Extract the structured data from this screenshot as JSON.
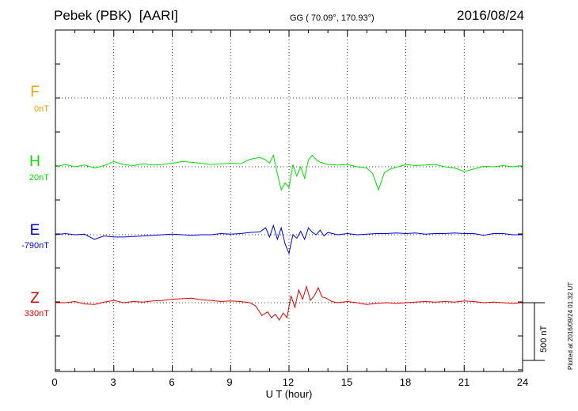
{
  "header": {
    "station": "Pebek (PBK)  [AARI]",
    "coords": "GG ( 70.09°, 170.93°)",
    "date": "2016/08/24"
  },
  "footer_note": "Plotted at 2016/09/24 01:32 UT",
  "scale_bar": {
    "label": "500 nT",
    "value_nT": 500
  },
  "components": [
    {
      "key": "F",
      "baseline": "0nT",
      "color": "#f0a000"
    },
    {
      "key": "H",
      "baseline": "20nT",
      "color": "#00e000"
    },
    {
      "key": "E",
      "baseline": "-790nT",
      "color": "#0000e0"
    },
    {
      "key": "Z",
      "baseline": "330nT",
      "color": "#e00000"
    }
  ],
  "chart_data": {
    "type": "line",
    "xlabel": "U T (hour)",
    "xlim": [
      0,
      24
    ],
    "xticks": [
      "0",
      "3",
      "6",
      "9",
      "12",
      "15",
      "18",
      "21",
      "24"
    ],
    "ylabel": "",
    "grid": true,
    "units": "nT",
    "series": [
      {
        "name": "F",
        "color": "#f0a000",
        "x": [],
        "values": []
      },
      {
        "name": "H",
        "color": "#00e000",
        "x": [
          0,
          0.5,
          1.0,
          1.5,
          2.0,
          2.5,
          3.0,
          3.5,
          4.0,
          4.5,
          5.0,
          5.5,
          6.0,
          6.5,
          7.0,
          7.5,
          8.0,
          8.5,
          9.0,
          9.5,
          10.0,
          10.5,
          10.8,
          11.0,
          11.2,
          11.4,
          11.6,
          11.8,
          12.0,
          12.2,
          12.4,
          12.6,
          12.8,
          13.0,
          13.2,
          13.4,
          13.6,
          13.8,
          14.0,
          14.5,
          15.0,
          15.5,
          16.0,
          16.3,
          16.6,
          16.9,
          17.2,
          17.6,
          18.0,
          18.5,
          19.0,
          19.5,
          20.0,
          20.5,
          21.0,
          21.5,
          22.0,
          22.5,
          23.0,
          23.5,
          24.0
        ],
        "values": [
          0,
          20,
          0,
          15,
          -10,
          10,
          45,
          20,
          10,
          25,
          15,
          20,
          30,
          45,
          40,
          30,
          20,
          25,
          30,
          25,
          65,
          80,
          60,
          30,
          100,
          -60,
          -200,
          -140,
          -180,
          20,
          -80,
          0,
          -100,
          60,
          100,
          60,
          40,
          30,
          20,
          15,
          20,
          0,
          -10,
          -60,
          -200,
          -50,
          -20,
          0,
          20,
          10,
          15,
          20,
          0,
          -10,
          -40,
          -20,
          5,
          0,
          10,
          0,
          10
        ]
      },
      {
        "name": "E",
        "color": "#0000e0",
        "x": [
          0,
          0.5,
          1.0,
          1.5,
          2.0,
          2.5,
          3.0,
          3.5,
          4.0,
          4.5,
          5.0,
          5.5,
          6.0,
          6.5,
          7.0,
          7.5,
          8.0,
          8.5,
          9.0,
          9.5,
          10.0,
          10.5,
          10.8,
          11.0,
          11.2,
          11.4,
          11.6,
          11.8,
          12.0,
          12.2,
          12.4,
          12.6,
          12.8,
          13.0,
          13.2,
          13.4,
          13.6,
          13.8,
          14.0,
          14.5,
          15.0,
          15.5,
          16.0,
          16.5,
          17.0,
          17.5,
          18.0,
          18.5,
          19.0,
          19.5,
          20.0,
          20.5,
          21.0,
          21.5,
          22.0,
          22.5,
          23.0,
          23.5,
          24.0
        ],
        "values": [
          0,
          10,
          0,
          5,
          -40,
          -10,
          -20,
          -20,
          -15,
          -10,
          -5,
          0,
          5,
          0,
          -5,
          0,
          0,
          10,
          5,
          10,
          20,
          25,
          60,
          -20,
          80,
          -40,
          60,
          -80,
          -160,
          0,
          -30,
          30,
          -40,
          60,
          20,
          0,
          40,
          -10,
          20,
          0,
          10,
          0,
          5,
          10,
          10,
          15,
          10,
          15,
          5,
          10,
          10,
          15,
          10,
          10,
          -5,
          10,
          10,
          0,
          0
        ]
      },
      {
        "name": "Z",
        "color": "#e00000",
        "x": [
          0,
          0.5,
          1.0,
          1.5,
          2.0,
          2.5,
          3.0,
          3.5,
          4.0,
          4.5,
          5.0,
          5.5,
          6.0,
          6.5,
          7.0,
          7.5,
          8.0,
          8.5,
          9.0,
          9.5,
          10.0,
          10.3,
          10.6,
          10.9,
          11.1,
          11.3,
          11.5,
          11.7,
          11.9,
          12.1,
          12.3,
          12.5,
          12.7,
          12.9,
          13.1,
          13.3,
          13.5,
          13.7,
          13.9,
          14.2,
          14.5,
          15.0,
          15.5,
          16.0,
          16.5,
          17.0,
          17.5,
          18.0,
          18.5,
          19.0,
          19.5,
          20.0,
          20.5,
          21.0,
          21.5,
          22.0,
          22.5,
          23.0,
          23.5,
          24.0
        ],
        "values": [
          0,
          0,
          10,
          -10,
          -15,
          5,
          20,
          0,
          10,
          5,
          15,
          20,
          30,
          35,
          40,
          25,
          20,
          10,
          15,
          10,
          0,
          -30,
          -110,
          -80,
          -130,
          -100,
          -150,
          -90,
          -130,
          60,
          -40,
          110,
          30,
          140,
          20,
          60,
          130,
          50,
          40,
          10,
          0,
          10,
          0,
          -15,
          -5,
          0,
          -5,
          0,
          5,
          10,
          5,
          10,
          5,
          15,
          10,
          0,
          5,
          0,
          -5,
          0
        ]
      }
    ]
  }
}
